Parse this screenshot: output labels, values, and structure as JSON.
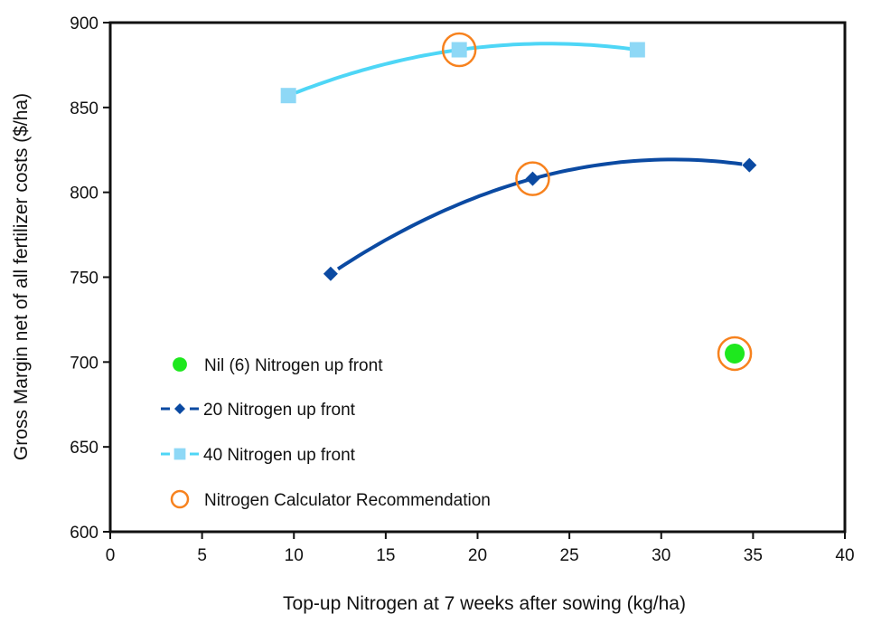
{
  "chart_data": {
    "type": "scatter",
    "title": "",
    "xlabel": "Top-up Nitrogen at 7 weeks after sowing (kg/ha)",
    "ylabel": "Gross Margin net of all fertilizer costs ($/ha)",
    "xlim": [
      0,
      40
    ],
    "ylim": [
      600,
      900
    ],
    "xticks": [
      0,
      5,
      10,
      15,
      20,
      25,
      30,
      35,
      40
    ],
    "yticks": [
      600,
      650,
      700,
      750,
      800,
      850,
      900
    ],
    "grid": false,
    "legend_position": "lower-left",
    "series": [
      {
        "name": "Nil (6) Nitrogen up front",
        "marker": "circle",
        "color": "#1ee81e",
        "trendline": false,
        "x": [
          34
        ],
        "y": [
          705
        ]
      },
      {
        "name": "20 Nitrogen up front",
        "marker": "diamond",
        "color": "#0b4aa2",
        "trendline": true,
        "x": [
          12,
          23,
          34.8
        ],
        "y": [
          752,
          808,
          816
        ]
      },
      {
        "name": "40 Nitrogen up front",
        "marker": "square",
        "color": "#8ed8f6",
        "line_color": "#4ed6f6",
        "trendline": true,
        "x": [
          9.7,
          19,
          28.7
        ],
        "y": [
          857,
          884,
          884
        ]
      },
      {
        "name": "Nitrogen Calculator Recommendation",
        "marker": "open-circle",
        "color": "#f7821e",
        "trendline": false,
        "x": [
          19,
          23,
          34
        ],
        "y": [
          884,
          808,
          705
        ]
      }
    ]
  }
}
